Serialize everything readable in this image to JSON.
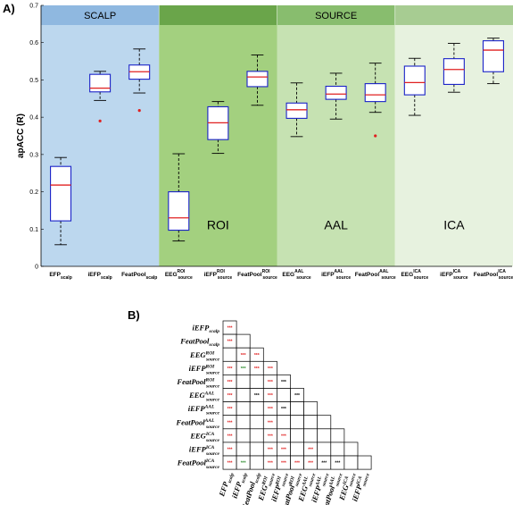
{
  "panel_labels": [
    "A)",
    "B)"
  ],
  "chart_data": [
    {
      "type": "box",
      "ylabel": "apACC (R)",
      "ylim": [
        0,
        0.7
      ],
      "yticks": [
        "0",
        "0.1",
        "0.2",
        "0.3",
        "0.4",
        "0.5",
        "0.6",
        "0.7"
      ],
      "bands": [
        {
          "label": "SCALP",
          "region_label": "",
          "color": "#bcd7ee",
          "header_color": "#8fb8e0",
          "cats": [
            0,
            2
          ]
        },
        {
          "label": "",
          "region_label": "ROI",
          "color": "#a3d07f",
          "header_color": "#6aa54a",
          "cats": [
            3,
            5
          ]
        },
        {
          "label": "",
          "region_label": "AAL",
          "color": "#c6e2b2",
          "header_color": "#88bd6e",
          "cats": [
            6,
            8
          ]
        },
        {
          "label": "",
          "region_label": "ICA",
          "color": "#e7f2df",
          "header_color": "#a7cc92",
          "cats": [
            9,
            11
          ]
        }
      ],
      "source_label": "SOURCE",
      "categories": [
        {
          "main": "EFP",
          "sub": "scalp",
          "sup": ""
        },
        {
          "main": "iEFP",
          "sub": "scalp",
          "sup": ""
        },
        {
          "main": "FeatPool",
          "sub": "scalp",
          "sup": ""
        },
        {
          "main": "EEG",
          "sub": "source",
          "sup": "ROI"
        },
        {
          "main": "iEFP",
          "sub": "source",
          "sup": "ROI"
        },
        {
          "main": "FeatPool",
          "sub": "source",
          "sup": "ROI"
        },
        {
          "main": "EEG",
          "sub": "source",
          "sup": "AAL"
        },
        {
          "main": "iEFP",
          "sub": "source",
          "sup": "AAL"
        },
        {
          "main": "FeatPool",
          "sub": "source",
          "sup": "AAL"
        },
        {
          "main": "EEG",
          "sub": "source",
          "sup": "ICA"
        },
        {
          "main": "iEFP",
          "sub": "source",
          "sup": "ICA"
        },
        {
          "main": "FeatPool",
          "sub": "source",
          "sup": "ICA"
        }
      ],
      "boxes": [
        {
          "min": 0.058,
          "q1": 0.122,
          "median": 0.218,
          "q3": 0.268,
          "max": 0.292,
          "outliers": []
        },
        {
          "min": 0.445,
          "q1": 0.468,
          "median": 0.478,
          "q3": 0.515,
          "max": 0.523,
          "outliers": [
            0.39
          ]
        },
        {
          "min": 0.465,
          "q1": 0.502,
          "median": 0.522,
          "q3": 0.54,
          "max": 0.583,
          "outliers": [
            0.418
          ]
        },
        {
          "min": 0.068,
          "q1": 0.097,
          "median": 0.13,
          "q3": 0.2,
          "max": 0.302,
          "outliers": []
        },
        {
          "min": 0.303,
          "q1": 0.34,
          "median": 0.385,
          "q3": 0.428,
          "max": 0.442,
          "outliers": []
        },
        {
          "min": 0.432,
          "q1": 0.482,
          "median": 0.508,
          "q3": 0.523,
          "max": 0.567,
          "outliers": []
        },
        {
          "min": 0.348,
          "q1": 0.397,
          "median": 0.42,
          "q3": 0.438,
          "max": 0.492,
          "outliers": []
        },
        {
          "min": 0.395,
          "q1": 0.448,
          "median": 0.462,
          "q3": 0.483,
          "max": 0.518,
          "outliers": []
        },
        {
          "min": 0.413,
          "q1": 0.442,
          "median": 0.46,
          "q3": 0.49,
          "max": 0.545,
          "outliers": [
            0.35
          ]
        },
        {
          "min": 0.405,
          "q1": 0.46,
          "median": 0.493,
          "q3": 0.537,
          "max": 0.558,
          "outliers": []
        },
        {
          "min": 0.467,
          "q1": 0.488,
          "median": 0.528,
          "q3": 0.557,
          "max": 0.598,
          "outliers": []
        },
        {
          "min": 0.49,
          "q1": 0.522,
          "median": 0.58,
          "q3": 0.605,
          "max": 0.612,
          "outliers": []
        }
      ]
    },
    {
      "type": "table",
      "labels": [
        {
          "main": "EFP",
          "sub": "scalp",
          "sup": ""
        },
        {
          "main": "iEFP",
          "sub": "scalp",
          "sup": ""
        },
        {
          "main": "FeatPool",
          "sub": "scalp",
          "sup": ""
        },
        {
          "main": "EEG",
          "sub": "source",
          "sup": "ROI"
        },
        {
          "main": "iEFP",
          "sub": "source",
          "sup": "ROI"
        },
        {
          "main": "FeatPool",
          "sub": "source",
          "sup": "ROI"
        },
        {
          "main": "EEG",
          "sub": "source",
          "sup": "AAL"
        },
        {
          "main": "iEFP",
          "sub": "source",
          "sup": "AAL"
        },
        {
          "main": "FeatPool",
          "sub": "source",
          "sup": "AAL"
        },
        {
          "main": "EEG",
          "sub": "source",
          "sup": "ICA"
        },
        {
          "main": "iEFP",
          "sub": "source",
          "sup": "ICA"
        },
        {
          "main": "FeatPool",
          "sub": "source",
          "sup": "ICA"
        }
      ],
      "star_colors": {
        "r": "#e02020",
        "g": "#2a8a2a",
        "k": "#000000"
      },
      "cells": [
        [
          "r"
        ],
        [
          "r",
          ""
        ],
        [
          "",
          "r",
          "r"
        ],
        [
          "r",
          "g",
          "r",
          "r"
        ],
        [
          "r",
          "",
          "",
          "r",
          "k"
        ],
        [
          "r",
          "",
          "k",
          "r",
          "",
          "k"
        ],
        [
          "r",
          "",
          "",
          "r",
          "k",
          "",
          ""
        ],
        [
          "r",
          "",
          "",
          "r",
          "",
          "",
          "",
          ""
        ],
        [
          "r",
          "",
          "",
          "r",
          "r",
          "",
          "",
          "",
          ""
        ],
        [
          "r",
          "",
          "",
          "r",
          "r",
          "",
          "r",
          "",
          "",
          ""
        ],
        [
          "r",
          "g",
          "",
          "r",
          "r",
          "r",
          "r",
          "k",
          "k",
          "",
          ""
        ]
      ],
      "star_text": "***",
      "star_variants": {
        "c2_0": "*"
      }
    }
  ]
}
